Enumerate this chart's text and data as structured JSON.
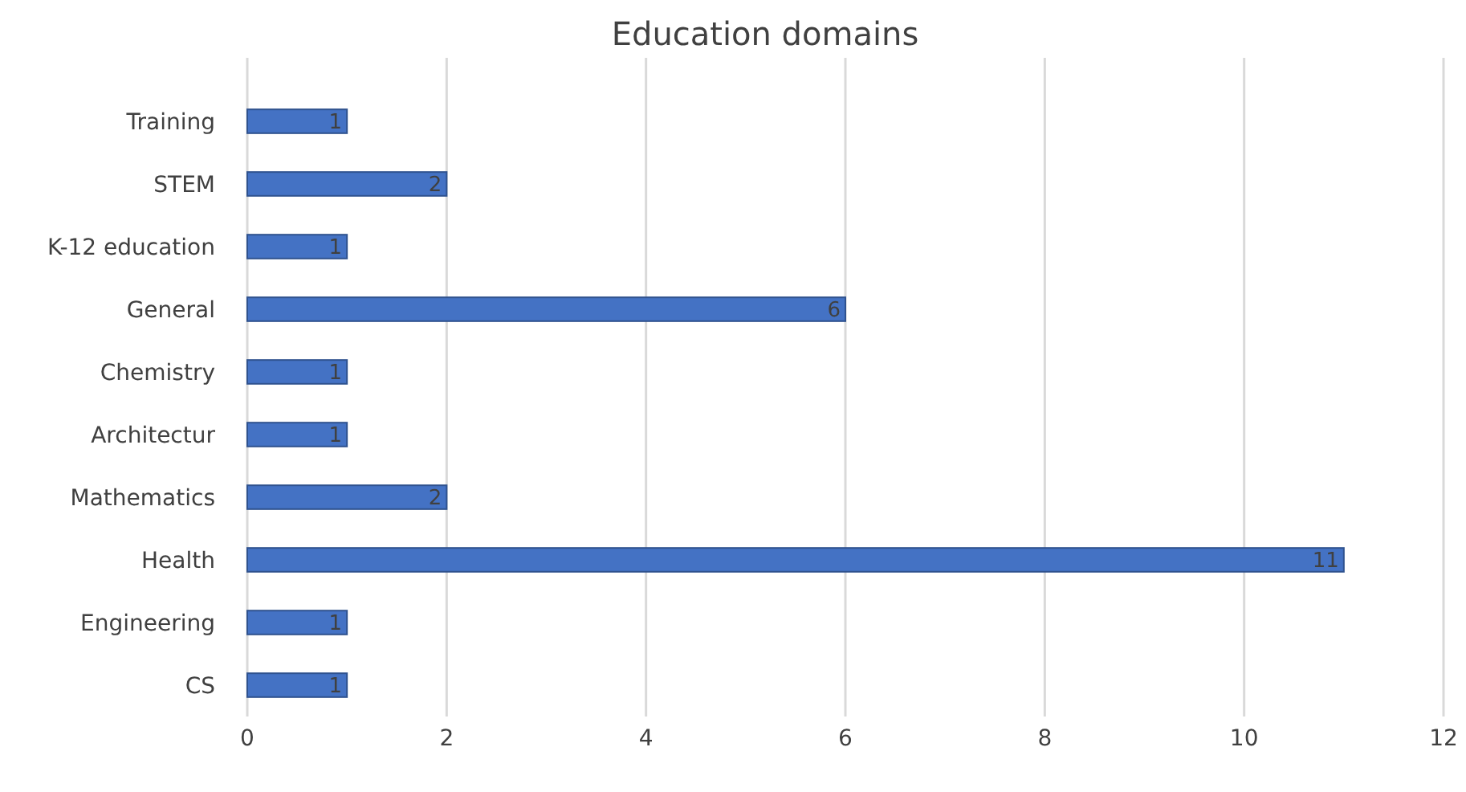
{
  "chart_data": {
    "type": "bar",
    "orientation": "horizontal",
    "title": "Education domains",
    "categories": [
      "Training",
      "STEM",
      "K-12 education",
      "General",
      "Chemistry",
      "Architectur",
      "Mathematics",
      "Health",
      "Engineering",
      "CS"
    ],
    "values": [
      1,
      2,
      1,
      6,
      1,
      1,
      2,
      11,
      1,
      1
    ],
    "color": "#4472c4",
    "xlim": [
      0,
      12
    ],
    "xticks": [
      0,
      2,
      4,
      6,
      8,
      10,
      12
    ],
    "grid": "x",
    "data_labels": true
  }
}
